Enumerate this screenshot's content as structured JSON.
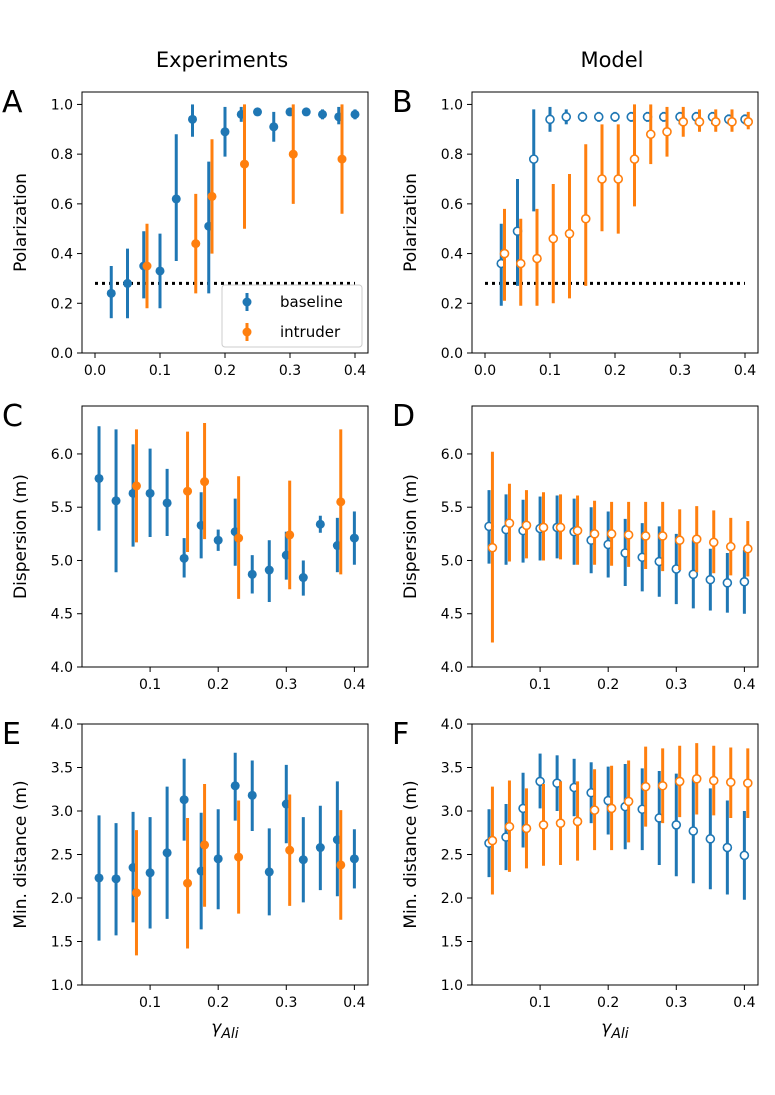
{
  "column_titles": [
    "Experiments",
    "Model"
  ],
  "colors": {
    "baseline": "#1f77b4",
    "intruder": "#ff7f0e",
    "threshold": "#000000"
  },
  "legend": {
    "baseline": "baseline",
    "intruder": "intruder"
  },
  "x_label": {
    "base": "γ",
    "sub": "Ali"
  },
  "chart_data": [
    {
      "panel": "A",
      "type": "scatter",
      "column": "Experiments",
      "marker": "filled",
      "ylabel": "Polarization",
      "xlim": [
        -0.02,
        0.42
      ],
      "ylim": [
        0.0,
        1.05
      ],
      "xticks": [
        0.0,
        0.1,
        0.2,
        0.3,
        0.4
      ],
      "xtick_labels": [
        "0.0",
        "0.1",
        "0.2",
        "0.3",
        "0.4"
      ],
      "yticks": [
        0.0,
        0.2,
        0.4,
        0.6,
        0.8,
        1.0
      ],
      "ytick_labels": [
        "0.0",
        "0.2",
        "0.4",
        "0.6",
        "0.8",
        "1.0"
      ],
      "threshold": 0.28,
      "legend": true,
      "series": [
        {
          "name": "baseline",
          "x": [
            0.025,
            0.05,
            0.075,
            0.1,
            0.125,
            0.15,
            0.175,
            0.2,
            0.225,
            0.25,
            0.275,
            0.3,
            0.325,
            0.35,
            0.375,
            0.4
          ],
          "y": [
            0.24,
            0.28,
            0.35,
            0.33,
            0.62,
            0.94,
            0.51,
            0.89,
            0.96,
            0.97,
            0.91,
            0.97,
            0.97,
            0.96,
            0.95,
            0.96
          ],
          "err_low": [
            0.14,
            0.14,
            0.22,
            0.18,
            0.37,
            0.87,
            0.24,
            0.79,
            0.93,
            0.96,
            0.85,
            0.96,
            0.96,
            0.94,
            0.92,
            0.94
          ],
          "err_high": [
            0.35,
            0.42,
            0.49,
            0.48,
            0.88,
            1.0,
            0.77,
            0.99,
            0.99,
            0.98,
            0.97,
            0.98,
            0.98,
            0.98,
            0.99,
            0.98
          ]
        },
        {
          "name": "intruder",
          "x": [
            0.08,
            0.155,
            0.18,
            0.23,
            0.305,
            0.38
          ],
          "y": [
            0.35,
            0.44,
            0.63,
            0.76,
            0.8,
            0.78
          ],
          "err_low": [
            0.18,
            0.24,
            0.4,
            0.5,
            0.6,
            0.56
          ],
          "err_high": [
            0.52,
            0.64,
            0.86,
            1.0,
            1.0,
            1.0
          ]
        }
      ]
    },
    {
      "panel": "B",
      "type": "scatter",
      "column": "Model",
      "marker": "open",
      "ylabel": "Polarization",
      "xlim": [
        -0.02,
        0.42
      ],
      "ylim": [
        0.0,
        1.05
      ],
      "xticks": [
        0.0,
        0.1,
        0.2,
        0.3,
        0.4
      ],
      "xtick_labels": [
        "0.0",
        "0.1",
        "0.2",
        "0.3",
        "0.4"
      ],
      "yticks": [
        0.0,
        0.2,
        0.4,
        0.6,
        0.8,
        1.0
      ],
      "ytick_labels": [
        "0.0",
        "0.2",
        "0.4",
        "0.6",
        "0.8",
        "1.0"
      ],
      "threshold": 0.28,
      "legend": false,
      "series": [
        {
          "name": "baseline",
          "x": [
            0.025,
            0.05,
            0.075,
            0.1,
            0.125,
            0.15,
            0.175,
            0.2,
            0.225,
            0.25,
            0.275,
            0.3,
            0.325,
            0.35,
            0.375,
            0.4
          ],
          "y": [
            0.36,
            0.49,
            0.78,
            0.94,
            0.95,
            0.95,
            0.95,
            0.95,
            0.95,
            0.95,
            0.95,
            0.95,
            0.95,
            0.95,
            0.94,
            0.94
          ],
          "err_low": [
            0.19,
            0.27,
            0.57,
            0.89,
            0.92,
            0.93,
            0.93,
            0.93,
            0.93,
            0.93,
            0.93,
            0.92,
            0.92,
            0.92,
            0.92,
            0.92
          ],
          "err_high": [
            0.52,
            0.7,
            0.98,
            0.99,
            0.98,
            0.97,
            0.97,
            0.97,
            0.97,
            0.97,
            0.97,
            0.97,
            0.97,
            0.97,
            0.96,
            0.96
          ]
        },
        {
          "name": "intruder",
          "x": [
            0.03,
            0.055,
            0.08,
            0.105,
            0.13,
            0.155,
            0.18,
            0.205,
            0.23,
            0.255,
            0.28,
            0.305,
            0.33,
            0.355,
            0.38,
            0.405
          ],
          "y": [
            0.4,
            0.36,
            0.38,
            0.46,
            0.48,
            0.54,
            0.7,
            0.7,
            0.78,
            0.88,
            0.89,
            0.93,
            0.93,
            0.93,
            0.93,
            0.93
          ],
          "err_low": [
            0.21,
            0.19,
            0.19,
            0.2,
            0.22,
            0.27,
            0.49,
            0.48,
            0.59,
            0.76,
            0.79,
            0.87,
            0.89,
            0.89,
            0.89,
            0.9
          ],
          "err_high": [
            0.58,
            0.54,
            0.58,
            0.68,
            0.72,
            0.84,
            0.92,
            0.92,
            1.0,
            1.0,
            0.99,
            0.99,
            0.98,
            0.98,
            0.98,
            0.97
          ]
        }
      ]
    },
    {
      "panel": "C",
      "type": "scatter",
      "column": "Experiments",
      "marker": "filled",
      "ylabel": "Dispersion (m)",
      "xlim": [
        0.0,
        0.42
      ],
      "ylim": [
        4.0,
        6.45
      ],
      "xticks": [
        0.1,
        0.2,
        0.3,
        0.4
      ],
      "xtick_labels": [
        "0.1",
        "0.2",
        "0.3",
        "0.4"
      ],
      "yticks": [
        4.0,
        4.5,
        5.0,
        5.5,
        6.0
      ],
      "ytick_labels": [
        "4.0",
        "4.5",
        "5.0",
        "5.5",
        "6.0"
      ],
      "threshold": null,
      "legend": false,
      "series": [
        {
          "name": "baseline",
          "x": [
            0.025,
            0.05,
            0.075,
            0.1,
            0.125,
            0.15,
            0.175,
            0.2,
            0.225,
            0.25,
            0.275,
            0.3,
            0.325,
            0.35,
            0.375,
            0.4
          ],
          "y": [
            5.77,
            5.56,
            5.63,
            5.63,
            5.54,
            5.02,
            5.33,
            5.19,
            5.27,
            4.87,
            4.91,
            5.05,
            4.84,
            5.34,
            5.14,
            5.21
          ],
          "err_low": [
            5.28,
            4.89,
            5.13,
            5.22,
            5.23,
            4.84,
            5.02,
            5.09,
            4.95,
            4.69,
            4.61,
            4.82,
            4.67,
            5.26,
            4.89,
            4.96
          ],
          "err_high": [
            6.26,
            6.23,
            6.09,
            6.05,
            5.86,
            5.21,
            5.64,
            5.29,
            5.58,
            5.05,
            5.19,
            5.27,
            5.0,
            5.42,
            5.4,
            5.46
          ]
        },
        {
          "name": "intruder",
          "x": [
            0.08,
            0.155,
            0.18,
            0.23,
            0.305,
            0.38
          ],
          "y": [
            5.7,
            5.65,
            5.74,
            5.21,
            5.24,
            5.55
          ],
          "err_low": [
            5.17,
            5.08,
            5.2,
            4.64,
            4.73,
            4.87
          ],
          "err_high": [
            6.23,
            6.21,
            6.29,
            5.79,
            5.75,
            6.23
          ]
        }
      ]
    },
    {
      "panel": "D",
      "type": "scatter",
      "column": "Model",
      "marker": "open",
      "ylabel": "Dispersion (m)",
      "xlim": [
        0.0,
        0.42
      ],
      "ylim": [
        4.0,
        6.45
      ],
      "xticks": [
        0.1,
        0.2,
        0.3,
        0.4
      ],
      "xtick_labels": [
        "0.1",
        "0.2",
        "0.3",
        "0.4"
      ],
      "yticks": [
        4.0,
        4.5,
        5.0,
        5.5,
        6.0
      ],
      "ytick_labels": [
        "4.0",
        "4.5",
        "5.0",
        "5.5",
        "6.0"
      ],
      "threshold": null,
      "legend": false,
      "series": [
        {
          "name": "baseline",
          "x": [
            0.025,
            0.05,
            0.075,
            0.1,
            0.125,
            0.15,
            0.175,
            0.2,
            0.225,
            0.25,
            0.275,
            0.3,
            0.325,
            0.35,
            0.375,
            0.4
          ],
          "y": [
            5.32,
            5.29,
            5.28,
            5.3,
            5.31,
            5.27,
            5.19,
            5.15,
            5.07,
            5.03,
            4.99,
            4.92,
            4.87,
            4.82,
            4.79,
            4.8
          ],
          "err_low": [
            4.97,
            4.96,
            4.98,
            5.0,
            5.02,
            4.96,
            4.88,
            4.84,
            4.76,
            4.71,
            4.66,
            4.59,
            4.55,
            4.53,
            4.51,
            4.5
          ],
          "err_high": [
            5.66,
            5.62,
            5.57,
            5.6,
            5.61,
            5.58,
            5.5,
            5.46,
            5.39,
            5.35,
            5.32,
            5.25,
            5.19,
            5.11,
            5.07,
            5.1
          ]
        },
        {
          "name": "intruder",
          "x": [
            0.03,
            0.055,
            0.08,
            0.105,
            0.13,
            0.155,
            0.18,
            0.205,
            0.23,
            0.255,
            0.28,
            0.305,
            0.33,
            0.355,
            0.38,
            0.405
          ],
          "y": [
            5.12,
            5.35,
            5.33,
            5.31,
            5.31,
            5.28,
            5.25,
            5.25,
            5.24,
            5.23,
            5.23,
            5.19,
            5.2,
            5.17,
            5.13,
            5.11
          ],
          "err_low": [
            4.23,
            4.99,
            5.02,
            5.0,
            5.01,
            4.96,
            4.96,
            4.95,
            4.94,
            4.92,
            4.9,
            4.91,
            4.89,
            4.88,
            4.86,
            4.85
          ],
          "err_high": [
            6.02,
            5.72,
            5.66,
            5.64,
            5.62,
            5.61,
            5.56,
            5.55,
            5.55,
            5.55,
            5.55,
            5.48,
            5.51,
            5.47,
            5.4,
            5.37
          ]
        }
      ]
    },
    {
      "panel": "E",
      "type": "scatter",
      "column": "Experiments",
      "marker": "filled",
      "ylabel": "Min. distance (m)",
      "xlim": [
        0.0,
        0.42
      ],
      "ylim": [
        1.0,
        4.0
      ],
      "xticks": [
        0.1,
        0.2,
        0.3,
        0.4
      ],
      "xtick_labels": [
        "0.1",
        "0.2",
        "0.3",
        "0.4"
      ],
      "yticks": [
        1.0,
        1.5,
        2.0,
        2.5,
        3.0,
        3.5,
        4.0
      ],
      "ytick_labels": [
        "1.0",
        "1.5",
        "2.0",
        "2.5",
        "3.0",
        "3.5",
        "4.0"
      ],
      "threshold": null,
      "legend": false,
      "series": [
        {
          "name": "baseline",
          "x": [
            0.025,
            0.05,
            0.075,
            0.1,
            0.125,
            0.15,
            0.175,
            0.2,
            0.225,
            0.25,
            0.275,
            0.3,
            0.325,
            0.35,
            0.375,
            0.4
          ],
          "y": [
            2.23,
            2.22,
            2.35,
            2.29,
            2.52,
            3.13,
            2.31,
            2.45,
            3.29,
            3.18,
            2.3,
            3.08,
            2.44,
            2.58,
            2.67,
            2.45
          ],
          "err_low": [
            1.51,
            1.57,
            1.72,
            1.65,
            1.76,
            2.66,
            1.64,
            1.87,
            2.89,
            2.77,
            1.8,
            2.63,
            1.95,
            2.09,
            2.02,
            2.11
          ],
          "err_high": [
            2.95,
            2.86,
            2.99,
            2.93,
            3.28,
            3.6,
            2.98,
            3.02,
            3.67,
            3.58,
            2.8,
            3.53,
            2.93,
            3.06,
            3.34,
            2.79
          ]
        },
        {
          "name": "intruder",
          "x": [
            0.08,
            0.155,
            0.18,
            0.23,
            0.305,
            0.38
          ],
          "y": [
            2.06,
            2.17,
            2.61,
            2.47,
            2.55,
            2.38
          ],
          "err_low": [
            1.34,
            1.42,
            1.9,
            1.82,
            1.91,
            1.75
          ],
          "err_high": [
            2.78,
            2.92,
            3.31,
            3.12,
            3.19,
            3.01
          ]
        }
      ]
    },
    {
      "panel": "F",
      "type": "scatter",
      "column": "Model",
      "marker": "open",
      "ylabel": "Min. distance (m)",
      "xlim": [
        0.0,
        0.42
      ],
      "ylim": [
        1.0,
        4.0
      ],
      "xticks": [
        0.1,
        0.2,
        0.3,
        0.4
      ],
      "xtick_labels": [
        "0.1",
        "0.2",
        "0.3",
        "0.4"
      ],
      "yticks": [
        1.0,
        1.5,
        2.0,
        2.5,
        3.0,
        3.5,
        4.0
      ],
      "ytick_labels": [
        "1.0",
        "1.5",
        "2.0",
        "2.5",
        "3.0",
        "3.5",
        "4.0"
      ],
      "threshold": null,
      "legend": false,
      "series": [
        {
          "name": "baseline",
          "x": [
            0.025,
            0.05,
            0.075,
            0.1,
            0.125,
            0.15,
            0.175,
            0.2,
            0.225,
            0.25,
            0.275,
            0.3,
            0.325,
            0.35,
            0.375,
            0.4
          ],
          "y": [
            2.63,
            2.7,
            3.03,
            3.34,
            3.32,
            3.27,
            3.21,
            3.12,
            3.05,
            3.02,
            2.92,
            2.84,
            2.77,
            2.68,
            2.58,
            2.49
          ],
          "err_low": [
            2.24,
            2.32,
            2.58,
            3.03,
            3.0,
            2.94,
            2.86,
            2.73,
            2.56,
            2.55,
            2.38,
            2.25,
            2.17,
            2.1,
            2.04,
            1.98
          ],
          "err_high": [
            3.02,
            3.08,
            3.44,
            3.66,
            3.64,
            3.6,
            3.56,
            3.51,
            3.54,
            3.49,
            3.46,
            3.43,
            3.37,
            3.26,
            3.12,
            3.0
          ]
        },
        {
          "name": "intruder",
          "x": [
            0.03,
            0.055,
            0.08,
            0.105,
            0.13,
            0.155,
            0.18,
            0.205,
            0.23,
            0.255,
            0.28,
            0.305,
            0.33,
            0.355,
            0.38,
            0.405
          ],
          "y": [
            2.66,
            2.82,
            2.8,
            2.84,
            2.86,
            2.88,
            3.01,
            3.03,
            3.11,
            3.28,
            3.29,
            3.34,
            3.37,
            3.35,
            3.33,
            3.32
          ],
          "err_low": [
            2.04,
            2.3,
            2.34,
            2.37,
            2.38,
            2.43,
            2.55,
            2.55,
            2.64,
            2.82,
            2.86,
            2.93,
            2.96,
            2.95,
            2.92,
            2.92
          ],
          "err_high": [
            3.28,
            3.35,
            3.26,
            3.31,
            3.34,
            3.34,
            3.48,
            3.52,
            3.58,
            3.74,
            3.72,
            3.75,
            3.78,
            3.75,
            3.73,
            3.72
          ]
        }
      ]
    }
  ]
}
